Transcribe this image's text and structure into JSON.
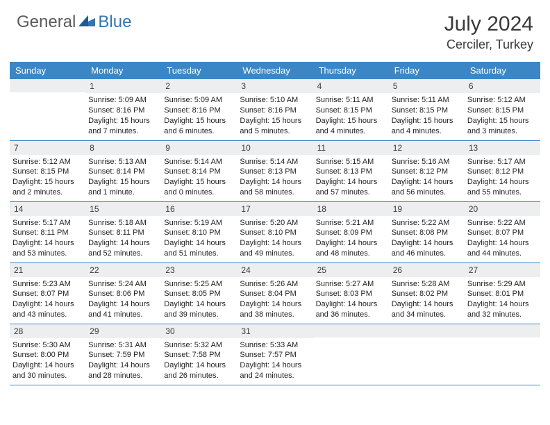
{
  "brand": {
    "general": "General",
    "blue": "Blue"
  },
  "title": {
    "month": "July 2024",
    "location": "Cerciler, Turkey"
  },
  "colors": {
    "header_bg": "#3b86c6",
    "header_text": "#ffffff",
    "daynum_bg": "#eceef0",
    "text": "#222222",
    "rule": "#3b86c6",
    "logo_gray": "#5a5a5a",
    "logo_blue": "#2f76b8"
  },
  "weekdays": [
    "Sunday",
    "Monday",
    "Tuesday",
    "Wednesday",
    "Thursday",
    "Friday",
    "Saturday"
  ],
  "weeks": [
    [
      {
        "day": "",
        "sunrise": "",
        "sunset": "",
        "daylight": ""
      },
      {
        "day": "1",
        "sunrise": "Sunrise: 5:09 AM",
        "sunset": "Sunset: 8:16 PM",
        "daylight": "Daylight: 15 hours and 7 minutes."
      },
      {
        "day": "2",
        "sunrise": "Sunrise: 5:09 AM",
        "sunset": "Sunset: 8:16 PM",
        "daylight": "Daylight: 15 hours and 6 minutes."
      },
      {
        "day": "3",
        "sunrise": "Sunrise: 5:10 AM",
        "sunset": "Sunset: 8:16 PM",
        "daylight": "Daylight: 15 hours and 5 minutes."
      },
      {
        "day": "4",
        "sunrise": "Sunrise: 5:11 AM",
        "sunset": "Sunset: 8:15 PM",
        "daylight": "Daylight: 15 hours and 4 minutes."
      },
      {
        "day": "5",
        "sunrise": "Sunrise: 5:11 AM",
        "sunset": "Sunset: 8:15 PM",
        "daylight": "Daylight: 15 hours and 4 minutes."
      },
      {
        "day": "6",
        "sunrise": "Sunrise: 5:12 AM",
        "sunset": "Sunset: 8:15 PM",
        "daylight": "Daylight: 15 hours and 3 minutes."
      }
    ],
    [
      {
        "day": "7",
        "sunrise": "Sunrise: 5:12 AM",
        "sunset": "Sunset: 8:15 PM",
        "daylight": "Daylight: 15 hours and 2 minutes."
      },
      {
        "day": "8",
        "sunrise": "Sunrise: 5:13 AM",
        "sunset": "Sunset: 8:14 PM",
        "daylight": "Daylight: 15 hours and 1 minute."
      },
      {
        "day": "9",
        "sunrise": "Sunrise: 5:14 AM",
        "sunset": "Sunset: 8:14 PM",
        "daylight": "Daylight: 15 hours and 0 minutes."
      },
      {
        "day": "10",
        "sunrise": "Sunrise: 5:14 AM",
        "sunset": "Sunset: 8:13 PM",
        "daylight": "Daylight: 14 hours and 58 minutes."
      },
      {
        "day": "11",
        "sunrise": "Sunrise: 5:15 AM",
        "sunset": "Sunset: 8:13 PM",
        "daylight": "Daylight: 14 hours and 57 minutes."
      },
      {
        "day": "12",
        "sunrise": "Sunrise: 5:16 AM",
        "sunset": "Sunset: 8:12 PM",
        "daylight": "Daylight: 14 hours and 56 minutes."
      },
      {
        "day": "13",
        "sunrise": "Sunrise: 5:17 AM",
        "sunset": "Sunset: 8:12 PM",
        "daylight": "Daylight: 14 hours and 55 minutes."
      }
    ],
    [
      {
        "day": "14",
        "sunrise": "Sunrise: 5:17 AM",
        "sunset": "Sunset: 8:11 PM",
        "daylight": "Daylight: 14 hours and 53 minutes."
      },
      {
        "day": "15",
        "sunrise": "Sunrise: 5:18 AM",
        "sunset": "Sunset: 8:11 PM",
        "daylight": "Daylight: 14 hours and 52 minutes."
      },
      {
        "day": "16",
        "sunrise": "Sunrise: 5:19 AM",
        "sunset": "Sunset: 8:10 PM",
        "daylight": "Daylight: 14 hours and 51 minutes."
      },
      {
        "day": "17",
        "sunrise": "Sunrise: 5:20 AM",
        "sunset": "Sunset: 8:10 PM",
        "daylight": "Daylight: 14 hours and 49 minutes."
      },
      {
        "day": "18",
        "sunrise": "Sunrise: 5:21 AM",
        "sunset": "Sunset: 8:09 PM",
        "daylight": "Daylight: 14 hours and 48 minutes."
      },
      {
        "day": "19",
        "sunrise": "Sunrise: 5:22 AM",
        "sunset": "Sunset: 8:08 PM",
        "daylight": "Daylight: 14 hours and 46 minutes."
      },
      {
        "day": "20",
        "sunrise": "Sunrise: 5:22 AM",
        "sunset": "Sunset: 8:07 PM",
        "daylight": "Daylight: 14 hours and 44 minutes."
      }
    ],
    [
      {
        "day": "21",
        "sunrise": "Sunrise: 5:23 AM",
        "sunset": "Sunset: 8:07 PM",
        "daylight": "Daylight: 14 hours and 43 minutes."
      },
      {
        "day": "22",
        "sunrise": "Sunrise: 5:24 AM",
        "sunset": "Sunset: 8:06 PM",
        "daylight": "Daylight: 14 hours and 41 minutes."
      },
      {
        "day": "23",
        "sunrise": "Sunrise: 5:25 AM",
        "sunset": "Sunset: 8:05 PM",
        "daylight": "Daylight: 14 hours and 39 minutes."
      },
      {
        "day": "24",
        "sunrise": "Sunrise: 5:26 AM",
        "sunset": "Sunset: 8:04 PM",
        "daylight": "Daylight: 14 hours and 38 minutes."
      },
      {
        "day": "25",
        "sunrise": "Sunrise: 5:27 AM",
        "sunset": "Sunset: 8:03 PM",
        "daylight": "Daylight: 14 hours and 36 minutes."
      },
      {
        "day": "26",
        "sunrise": "Sunrise: 5:28 AM",
        "sunset": "Sunset: 8:02 PM",
        "daylight": "Daylight: 14 hours and 34 minutes."
      },
      {
        "day": "27",
        "sunrise": "Sunrise: 5:29 AM",
        "sunset": "Sunset: 8:01 PM",
        "daylight": "Daylight: 14 hours and 32 minutes."
      }
    ],
    [
      {
        "day": "28",
        "sunrise": "Sunrise: 5:30 AM",
        "sunset": "Sunset: 8:00 PM",
        "daylight": "Daylight: 14 hours and 30 minutes."
      },
      {
        "day": "29",
        "sunrise": "Sunrise: 5:31 AM",
        "sunset": "Sunset: 7:59 PM",
        "daylight": "Daylight: 14 hours and 28 minutes."
      },
      {
        "day": "30",
        "sunrise": "Sunrise: 5:32 AM",
        "sunset": "Sunset: 7:58 PM",
        "daylight": "Daylight: 14 hours and 26 minutes."
      },
      {
        "day": "31",
        "sunrise": "Sunrise: 5:33 AM",
        "sunset": "Sunset: 7:57 PM",
        "daylight": "Daylight: 14 hours and 24 minutes."
      },
      {
        "day": "",
        "sunrise": "",
        "sunset": "",
        "daylight": ""
      },
      {
        "day": "",
        "sunrise": "",
        "sunset": "",
        "daylight": ""
      },
      {
        "day": "",
        "sunrise": "",
        "sunset": "",
        "daylight": ""
      }
    ]
  ]
}
